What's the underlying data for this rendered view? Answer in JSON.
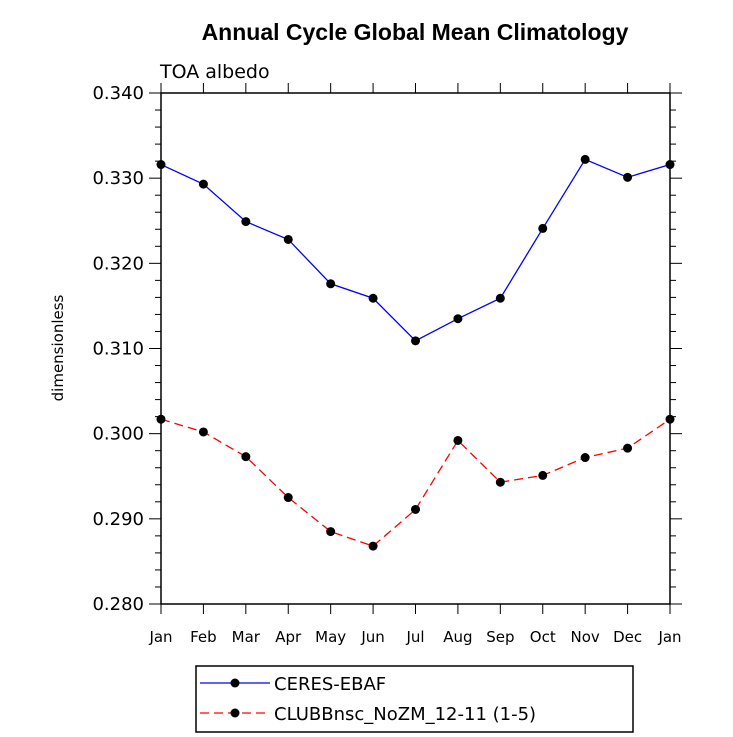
{
  "chart_data": {
    "type": "line",
    "title": "Annual Cycle Global Mean Climatology",
    "subtitle": "TOA albedo",
    "xlabel": "",
    "ylabel": "dimensionless",
    "categories": [
      "Jan",
      "Feb",
      "Mar",
      "Apr",
      "May",
      "Jun",
      "Jul",
      "Aug",
      "Sep",
      "Oct",
      "Nov",
      "Dec",
      "Jan"
    ],
    "ylim": [
      0.28,
      0.34
    ],
    "yticks": [
      "0.280",
      "0.290",
      "0.300",
      "0.310",
      "0.320",
      "0.330",
      "0.340"
    ],
    "grid": false,
    "legend_position": "bottom",
    "series": [
      {
        "name": "CERES-EBAF",
        "color": "#0000ff",
        "line_style": "solid",
        "values": [
          0.3316,
          0.3293,
          0.3249,
          0.3228,
          0.3176,
          0.3159,
          0.3109,
          0.3135,
          0.3159,
          0.3241,
          0.3322,
          0.3301,
          0.3316
        ]
      },
      {
        "name": "CLUBBnsc_NoZM_12-11 (1-5)",
        "color": "#ff0000",
        "line_style": "dashed",
        "values": [
          0.3017,
          0.3002,
          0.2973,
          0.2925,
          0.2885,
          0.2868,
          0.2911,
          0.2992,
          0.2943,
          0.2951,
          0.2972,
          0.2983,
          0.3017
        ]
      }
    ]
  }
}
